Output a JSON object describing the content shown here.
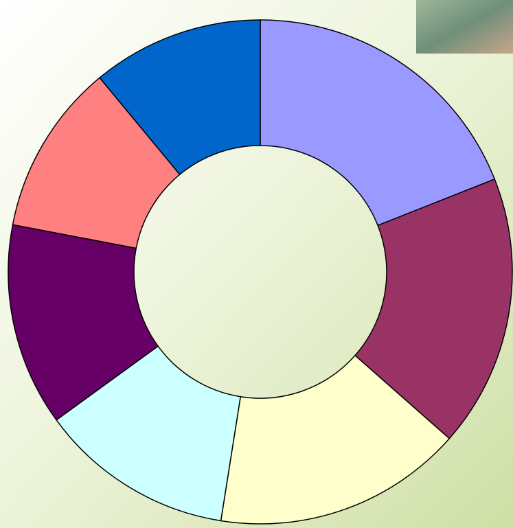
{
  "chart_data": {
    "type": "donut",
    "values": [
      19,
      17.5,
      16,
      12.5,
      13,
      11,
      11
    ],
    "colors": [
      "#9999ff",
      "#993366",
      "#ffffcc",
      "#ccffff",
      "#660066",
      "#ff8080",
      "#0066cc"
    ]
  }
}
